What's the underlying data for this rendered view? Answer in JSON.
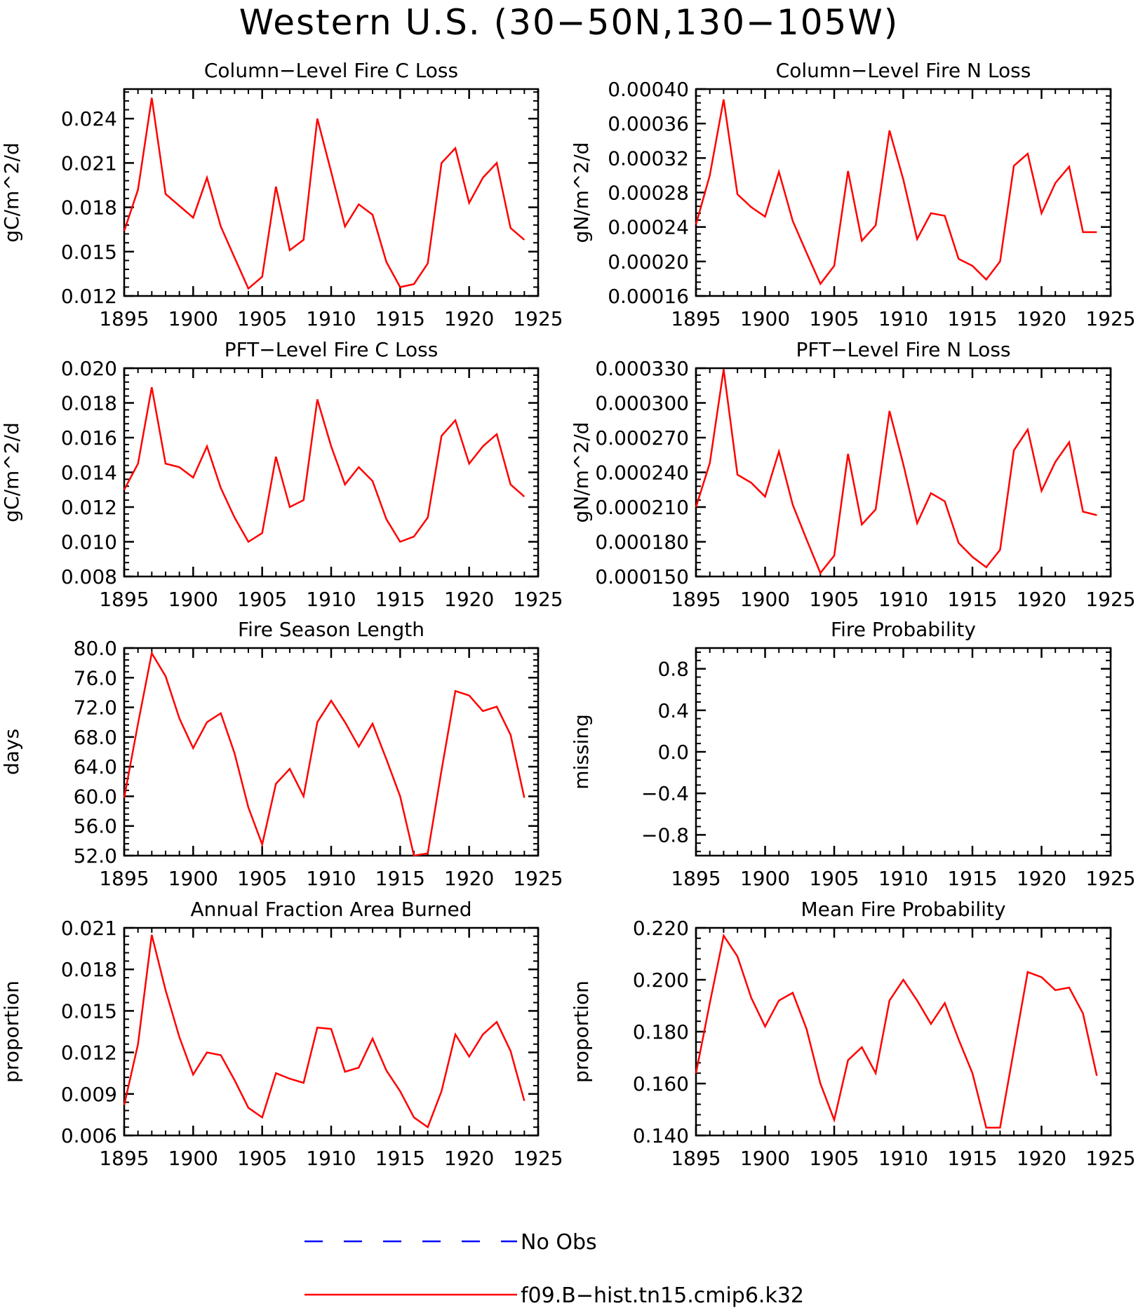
{
  "title": "Western U.S. (30−50N,130−105W)",
  "colors": {
    "model_line": "#ff0000",
    "obs_line": "#0000ff",
    "axes": "#000000"
  },
  "legend": {
    "items": [
      {
        "label": "No Obs",
        "style": "dashed",
        "color": "#0000ff"
      },
      {
        "label": "f09.B−hist.tn15.cmip6.k32",
        "style": "solid",
        "color": "#ff0000"
      }
    ]
  },
  "chart_data": [
    {
      "type": "line",
      "title": "Column−Level Fire C Loss",
      "ylabel": "gC/m^2/d",
      "xlim": [
        1895,
        1925
      ],
      "x_ticks": [
        "1895",
        "1900",
        "1905",
        "1910",
        "1915",
        "1920",
        "1925"
      ],
      "ylim": [
        0.012,
        0.026
      ],
      "y_ticks": [
        {
          "value": 0.012,
          "label": "0.012"
        },
        {
          "value": 0.015,
          "label": "0.015"
        },
        {
          "value": 0.018,
          "label": "0.018"
        },
        {
          "value": 0.021,
          "label": "0.021"
        },
        {
          "value": 0.024,
          "label": "0.024"
        }
      ],
      "x": [
        1895,
        1896,
        1897,
        1898,
        1899,
        1900,
        1901,
        1902,
        1903,
        1904,
        1905,
        1906,
        1907,
        1908,
        1909,
        1910,
        1911,
        1912,
        1913,
        1914,
        1915,
        1916,
        1917,
        1918,
        1919,
        1920,
        1921,
        1922,
        1923,
        1924
      ],
      "series": [
        {
          "name": "f09.B−hist.tn15.cmip6.k32",
          "values": [
            0.0164,
            0.0192,
            0.0254,
            0.0189,
            0.0181,
            0.0173,
            0.02,
            0.0167,
            0.0146,
            0.0125,
            0.0133,
            0.0194,
            0.0151,
            0.0158,
            0.024,
            0.0204,
            0.0167,
            0.0182,
            0.0175,
            0.0143,
            0.0126,
            0.0128,
            0.0142,
            0.021,
            0.022,
            0.0183,
            0.02,
            0.021,
            0.0166,
            0.0158
          ]
        }
      ]
    },
    {
      "type": "line",
      "title": "Column−Level Fire N Loss",
      "ylabel": "gN/m^2/d",
      "xlim": [
        1895,
        1925
      ],
      "x_ticks": [
        "1895",
        "1900",
        "1905",
        "1910",
        "1915",
        "1920",
        "1925"
      ],
      "ylim": [
        0.00016,
        0.0004
      ],
      "y_ticks": [
        {
          "value": 0.00016,
          "label": "0.00016"
        },
        {
          "value": 0.0002,
          "label": "0.00020"
        },
        {
          "value": 0.00024,
          "label": "0.00024"
        },
        {
          "value": 0.00028,
          "label": "0.00028"
        },
        {
          "value": 0.00032,
          "label": "0.00032"
        },
        {
          "value": 0.00036,
          "label": "0.00036"
        },
        {
          "value": 0.0004,
          "label": "0.00040"
        }
      ],
      "x": [
        1895,
        1896,
        1897,
        1898,
        1899,
        1900,
        1901,
        1902,
        1903,
        1904,
        1905,
        1906,
        1907,
        1908,
        1909,
        1910,
        1911,
        1912,
        1913,
        1914,
        1915,
        1916,
        1917,
        1918,
        1919,
        1920,
        1921,
        1922,
        1923,
        1924
      ],
      "series": [
        {
          "name": "f09.B−hist.tn15.cmip6.k32",
          "values": [
            0.000243,
            0.0003,
            0.000388,
            0.000278,
            0.000263,
            0.000252,
            0.000304,
            0.000247,
            0.00021,
            0.000174,
            0.000195,
            0.000305,
            0.000224,
            0.000242,
            0.000352,
            0.000295,
            0.000226,
            0.000256,
            0.000253,
            0.000203,
            0.000195,
            0.000179,
            0.0002,
            0.000311,
            0.000325,
            0.000256,
            0.000291,
            0.00031,
            0.000234,
            0.000234
          ]
        }
      ]
    },
    {
      "type": "line",
      "title": "PFT−Level Fire C Loss",
      "ylabel": "gC/m^2/d",
      "xlim": [
        1895,
        1925
      ],
      "x_ticks": [
        "1895",
        "1900",
        "1905",
        "1910",
        "1915",
        "1920",
        "1925"
      ],
      "ylim": [
        0.008,
        0.02
      ],
      "y_ticks": [
        {
          "value": 0.008,
          "label": "0.008"
        },
        {
          "value": 0.01,
          "label": "0.010"
        },
        {
          "value": 0.012,
          "label": "0.012"
        },
        {
          "value": 0.014,
          "label": "0.014"
        },
        {
          "value": 0.016,
          "label": "0.016"
        },
        {
          "value": 0.018,
          "label": "0.018"
        },
        {
          "value": 0.02,
          "label": "0.020"
        }
      ],
      "x": [
        1895,
        1896,
        1897,
        1898,
        1899,
        1900,
        1901,
        1902,
        1903,
        1904,
        1905,
        1906,
        1907,
        1908,
        1909,
        1910,
        1911,
        1912,
        1913,
        1914,
        1915,
        1916,
        1917,
        1918,
        1919,
        1920,
        1921,
        1922,
        1923,
        1924
      ],
      "series": [
        {
          "name": "f09.B−hist.tn15.cmip6.k32",
          "values": [
            0.013,
            0.0145,
            0.0189,
            0.0145,
            0.0143,
            0.0137,
            0.0155,
            0.0131,
            0.0114,
            0.01,
            0.0105,
            0.0149,
            0.012,
            0.0124,
            0.0182,
            0.0155,
            0.0133,
            0.0143,
            0.0135,
            0.0113,
            0.01,
            0.0103,
            0.0114,
            0.0161,
            0.017,
            0.0145,
            0.0155,
            0.0162,
            0.0133,
            0.0126
          ]
        }
      ]
    },
    {
      "type": "line",
      "title": "PFT−Level Fire N Loss",
      "ylabel": "gN/m^2/d",
      "xlim": [
        1895,
        1925
      ],
      "x_ticks": [
        "1895",
        "1900",
        "1905",
        "1910",
        "1915",
        "1920",
        "1925"
      ],
      "ylim": [
        0.00015,
        0.00033
      ],
      "y_ticks": [
        {
          "value": 0.00015,
          "label": "0.000150"
        },
        {
          "value": 0.00018,
          "label": "0.000180"
        },
        {
          "value": 0.00021,
          "label": "0.000210"
        },
        {
          "value": 0.00024,
          "label": "0.000240"
        },
        {
          "value": 0.00027,
          "label": "0.000270"
        },
        {
          "value": 0.0003,
          "label": "0.000300"
        },
        {
          "value": 0.00033,
          "label": "0.000330"
        }
      ],
      "x": [
        1895,
        1896,
        1897,
        1898,
        1899,
        1900,
        1901,
        1902,
        1903,
        1904,
        1905,
        1906,
        1907,
        1908,
        1909,
        1910,
        1911,
        1912,
        1913,
        1914,
        1915,
        1916,
        1917,
        1918,
        1919,
        1920,
        1921,
        1922,
        1923,
        1924
      ],
      "series": [
        {
          "name": "f09.B−hist.tn15.cmip6.k32",
          "values": [
            0.00021,
            0.000248,
            0.000329,
            0.000238,
            0.000231,
            0.000219,
            0.000258,
            0.000212,
            0.000182,
            0.000153,
            0.000168,
            0.000256,
            0.000195,
            0.000208,
            0.000293,
            0.000247,
            0.000196,
            0.000222,
            0.000215,
            0.000179,
            0.000167,
            0.000158,
            0.000173,
            0.000259,
            0.000277,
            0.000224,
            0.000249,
            0.000266,
            0.000206,
            0.000203
          ]
        }
      ]
    },
    {
      "type": "line",
      "title": "Fire Season Length",
      "ylabel": "days",
      "xlim": [
        1895,
        1925
      ],
      "x_ticks": [
        "1895",
        "1900",
        "1905",
        "1910",
        "1915",
        "1920",
        "1925"
      ],
      "ylim": [
        52.0,
        80.0
      ],
      "y_ticks": [
        {
          "value": 52,
          "label": "52.0"
        },
        {
          "value": 56,
          "label": "56.0"
        },
        {
          "value": 60,
          "label": "60.0"
        },
        {
          "value": 64,
          "label": "64.0"
        },
        {
          "value": 68,
          "label": "68.0"
        },
        {
          "value": 72,
          "label": "72.0"
        },
        {
          "value": 76,
          "label": "76.0"
        },
        {
          "value": 80,
          "label": "80.0"
        }
      ],
      "x": [
        1895,
        1896,
        1897,
        1898,
        1899,
        1900,
        1901,
        1902,
        1903,
        1904,
        1905,
        1906,
        1907,
        1908,
        1909,
        1910,
        1911,
        1912,
        1913,
        1914,
        1915,
        1916,
        1917,
        1918,
        1919,
        1920,
        1921,
        1922,
        1923,
        1924
      ],
      "series": [
        {
          "name": "f09.B−hist.tn15.cmip6.k32",
          "values": [
            59.8,
            69.8,
            79.3,
            76.2,
            70.5,
            66.5,
            70.0,
            71.2,
            65.8,
            58.5,
            53.5,
            61.7,
            63.7,
            60.0,
            70.0,
            72.9,
            70.0,
            66.7,
            69.8,
            65.0,
            60.0,
            52.0,
            52.3,
            63.5,
            74.2,
            73.6,
            71.5,
            72.1,
            68.3,
            59.8
          ]
        }
      ]
    },
    {
      "type": "line",
      "title": "Fire Probability",
      "ylabel": "missing",
      "xlim": [
        1895,
        1925
      ],
      "x_ticks": [
        "1895",
        "1900",
        "1905",
        "1910",
        "1915",
        "1920",
        "1925"
      ],
      "ylim": [
        -1.0,
        1.0
      ],
      "y_ticks": [
        {
          "value": -0.8,
          "label": "−0.8"
        },
        {
          "value": -0.4,
          "label": "−0.4"
        },
        {
          "value": 0.0,
          "label": "0.0"
        },
        {
          "value": 0.4,
          "label": "0.4"
        },
        {
          "value": 0.8,
          "label": "0.8"
        }
      ],
      "x": [],
      "series": []
    },
    {
      "type": "line",
      "title": "Annual Fraction Area Burned",
      "ylabel": "proportion",
      "xlim": [
        1895,
        1925
      ],
      "x_ticks": [
        "1895",
        "1900",
        "1905",
        "1910",
        "1915",
        "1920",
        "1925"
      ],
      "ylim": [
        0.006,
        0.021
      ],
      "y_ticks": [
        {
          "value": 0.006,
          "label": "0.006"
        },
        {
          "value": 0.009,
          "label": "0.009"
        },
        {
          "value": 0.012,
          "label": "0.012"
        },
        {
          "value": 0.015,
          "label": "0.015"
        },
        {
          "value": 0.018,
          "label": "0.018"
        },
        {
          "value": 0.021,
          "label": "0.021"
        }
      ],
      "x": [
        1895,
        1896,
        1897,
        1898,
        1899,
        1900,
        1901,
        1902,
        1903,
        1904,
        1905,
        1906,
        1907,
        1908,
        1909,
        1910,
        1911,
        1912,
        1913,
        1914,
        1915,
        1916,
        1917,
        1918,
        1919,
        1920,
        1921,
        1922,
        1923,
        1924
      ],
      "series": [
        {
          "name": "f09.B−hist.tn15.cmip6.k32",
          "values": [
            0.0082,
            0.0126,
            0.0205,
            0.0165,
            0.0131,
            0.0104,
            0.012,
            0.0118,
            0.01,
            0.008,
            0.0073,
            0.0105,
            0.0101,
            0.0098,
            0.0138,
            0.0137,
            0.0106,
            0.0109,
            0.013,
            0.0107,
            0.0092,
            0.0073,
            0.0066,
            0.0092,
            0.0133,
            0.0117,
            0.0133,
            0.0142,
            0.0121,
            0.0085
          ]
        }
      ]
    },
    {
      "type": "line",
      "title": "Mean Fire Probability",
      "ylabel": "proportion",
      "xlim": [
        1895,
        1925
      ],
      "x_ticks": [
        "1895",
        "1900",
        "1905",
        "1910",
        "1915",
        "1920",
        "1925"
      ],
      "ylim": [
        0.14,
        0.22
      ],
      "y_ticks": [
        {
          "value": 0.14,
          "label": "0.140"
        },
        {
          "value": 0.16,
          "label": "0.160"
        },
        {
          "value": 0.18,
          "label": "0.180"
        },
        {
          "value": 0.2,
          "label": "0.200"
        },
        {
          "value": 0.22,
          "label": "0.220"
        }
      ],
      "x": [
        1895,
        1896,
        1897,
        1898,
        1899,
        1900,
        1901,
        1902,
        1903,
        1904,
        1905,
        1906,
        1907,
        1908,
        1909,
        1910,
        1911,
        1912,
        1913,
        1914,
        1915,
        1916,
        1917,
        1918,
        1919,
        1920,
        1921,
        1922,
        1923,
        1924
      ],
      "series": [
        {
          "name": "f09.B−hist.tn15.cmip6.k32",
          "values": [
            0.164,
            0.191,
            0.217,
            0.209,
            0.193,
            0.182,
            0.192,
            0.195,
            0.181,
            0.16,
            0.146,
            0.169,
            0.174,
            0.164,
            0.192,
            0.2,
            0.192,
            0.183,
            0.191,
            0.177,
            0.164,
            0.143,
            0.143,
            0.173,
            0.203,
            0.201,
            0.196,
            0.197,
            0.187,
            0.163
          ]
        }
      ]
    }
  ]
}
